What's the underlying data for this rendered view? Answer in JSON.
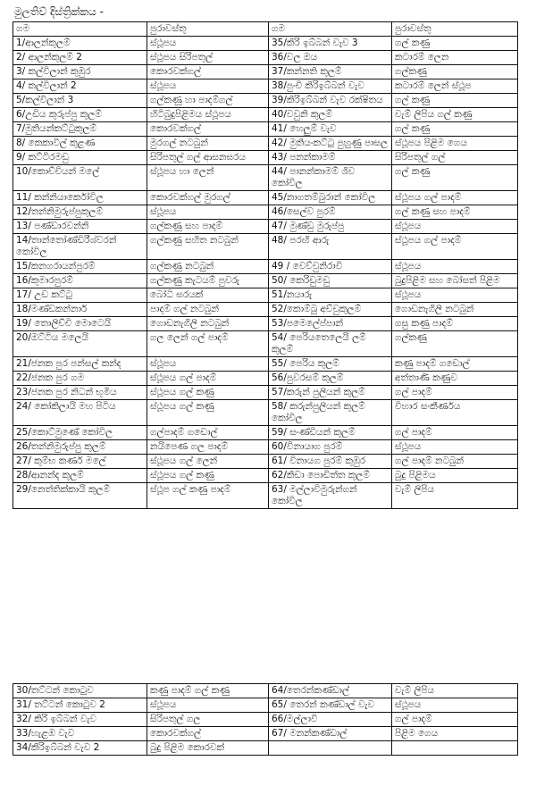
{
  "title": "මුලතිව් දිස්ත්‍රික්කය -",
  "headers": [
    "ගම",
    "පුරාවස්තු",
    "ගම",
    "පුරාවස්තු"
  ],
  "rows": [
    [
      "1/ආලන්කුලම්",
      "ස්ථූපය",
      "35/කිරි ඉබ්බන් වැව 3",
      "ගල් කණු"
    ],
    [
      "2/ ආලන්කුලම් 2",
      "ස්ථූපය සිරිපතුල්",
      "36/වල ඔය",
      "කටාරම් ලෙන"
    ],
    [
      "3/ කල්විලාන් කුඹුර",
      "කොරවක්ගල්",
      "37/කන්නති කුලම්",
      "ගල්කණු"
    ],
    [
      "4/ කල්විලාන් 2",
      "ස්ථූපය",
      "38/පුංචි කිරිඉබ්බන් වැව",
      "කටාරම් ලෙන් ස්ථූප"
    ],
    [
      "5/කල්විලාන් 3",
      "ගල්කණු හා පාදම්ගල්",
      "39/කිරිඉබ්බන් වැව රක්ෂිතය",
      "ගල් කණු"
    ],
    [
      "6/උඩිය කුරුප්පු කුලම්",
      "හිටිබුදුපිළිමය ස්ථූපය",
      "40/වවුනි කුලම්",
      "වැම් ලිපිය ගල් කණු"
    ],
    [
      "7/මුතියන්කට්ටුකුලම්",
      "කොරවක්ගල්",
      "41/ හෙලුම් වැව",
      "ගල් කණු"
    ],
    [
      "8/ කෙකාවිල් කුළණ",
      "මුරගල් නටබුන්",
      "42/ මුතියංකට්ටු පුහුණු පාසල",
      "ස්ථූපය පිළිම ගෙය"
    ],
    [
      "9/ කට්ටිරමඩු",
      "සිරිපතුල් ගල් ආසනඝරය",
      "43/ පනන්කාමම්",
      "සිරිපතුල් ගල්"
    ],
    [
      "10/කොච්චියන් මලේ",
      "ස්ථූපය හා ලෙන්",
      "44/ පානන්කාමම් ශිව කෝවිල",
      "ගල් කණු"
    ],
    [
      "11/ කන්නියාර්කෝවිල",
      "කොරවක්ගල් මුරගල්",
      "45/නාගතම්බුරාන් කෝවිල",
      "ස්ථූපය ගල් පාදම්"
    ],
    [
      "12/තන්නිමුරුප්පුකුලම්",
      "ස්ථූපය",
      "46/සෙල්ව පුරම්",
      "ගල් කණු සහ පාදම්"
    ],
    [
      "13/ පණ්ඩාරවන්නි",
      "ගල්කණු සහ පාදම්",
      "47/ මුණ්ඩු මුරුප්පු",
      "ස්ථූපය"
    ],
    [
      "14/තාන්තෝණ්ඩිරීශ්වරන් කෝවිල",
      "ගල්කණු සහිත නටබුන්",
      "48/ පරඟි ආරු",
      "ස්ථූපය ගල් පාදම්"
    ],
    [
      "15/කනගරායන්පුරම්",
      "ගල්කණු නටබුන්",
      "49 / වෙව්වුනිරාවි",
      "ස්ථූපය"
    ],
    [
      "16/කුමාරපුරම්",
      "ගල්කණු කැටයම් පුවරු",
      "50/ කෙරිඩුමඩු",
      "බුදුපිළිම සහ බෝසත් පිළිම"
    ],
    [
      "17/ උඩ කට්ටු",
      "බෝධි ඝරයක්",
      "51/නයාරු",
      "ස්ථූපය"
    ],
    [
      "18/මණ්ඩකන්නාර්",
      "පාදම් ගල් නටබුන්",
      "52/කොම්බු අච්චුකුලම්",
      "ගොඩනැගිලි නටබුන්"
    ],
    [
      "19/ තොලිච්චි මොටෙයි",
      "ගොඩනැගිලි නටබුන්",
      "53/පමෙලේප්පාන්",
      "ගසු කණු පාදම්"
    ],
    [
      "20/ඔට්ටිය මලෙයි",
      "ගල ලෙන් ගල් පාදම්",
      "54/ පෙරියතෙලෙයි ලම් කුලම්",
      "ගල්කණු"
    ],
    [
      "21/ජනක පුර පන්සල් කන්ද",
      "ස්ථූපය",
      "55/ පෙරිය කුලම්",
      "කණු පාදම් ගඩොල්"
    ],
    [
      "22/ජනක පුර ගම",
      "ස්ථූපය ගල් පාදම්",
      "56/පුවරසම් කුලම්",
      "අත්තාණි කණුව"
    ],
    [
      "23/ජනක පුර නිධන් භූමිය",
      "ස්ථූපය ගල් කණු",
      "57/කරුන් පුලියන් කුලම්",
      "ගල් පාදම්"
    ],
    [
      "24/ කෝකිලායි මහ පිටිය",
      "ස්ථූපය ගල් කණු",
      "58/ කරුන්පුලියන් කුලම් කෝවිල",
      "විහාර සංකීර්ණය"
    ],
    [
      "25/කොට්මුණේ කෝවිල",
      "ගල්පාදම් ගඩොල්",
      "59/ සංණ්ඩියන් කුලම්",
      "ගල් පාදම්"
    ],
    [
      "26/තන්නිමුරුප්පු කුලම්",
      "නයිපෙණ ගල පාදම්",
      "60/විනායාග පුරම්",
      "ස්ථූපය"
    ],
    [
      "27/ කුම්භ කර්ණ මලේ",
      "ස්ථූපය ගල් ලෙන්",
      "61/ විනායග පුරම් කුඹුර",
      "ගල් පාදම් නටබුන්"
    ],
    [
      "28/ආනන්ද කුලම්",
      "ස්ථූපය ගල් කණු",
      "62/කිඩා පොඩිත්ත කුලම්",
      "බුදු පිළිමය"
    ],
    [
      "29/නෙත්තික්කායි කුලම්",
      "ස්ථූප ගල් කණු පාදම්",
      "63/ මල්ලාවිමුරුන්ගන් කෝවිල",
      "වැම් ලිපිය"
    ]
  ],
  "rows2": [
    [
      "30/තට්ටන් කොටුව",
      "කණු පාදම් ගල් කණු",
      "64/තෙරන්කණ්ඩාල්",
      "වැම් ලිපිය"
    ],
    [
      "31/ තට්ටන් කොටුව 2",
      "ස්ථූපය",
      "65/ තෙරන් කණ්ඩාල් වැව",
      "ස්ථූපය"
    ],
    [
      "32/ කිරි ඉබ්බන් වැව",
      "සිරිපතුල් ගල",
      "66/මල්ලාවි",
      "ගල් පාදම්"
    ],
    [
      "33/හැළඹ වැව",
      "කොරවක්ගල්",
      "67/ මනන්කණ්ඩාල්",
      "පිළිම ගෙය"
    ],
    [
      "34/කිරිඉබ්බන් වැව 2",
      "බුදු පිළිම කොරවක්",
      "",
      ""
    ]
  ]
}
